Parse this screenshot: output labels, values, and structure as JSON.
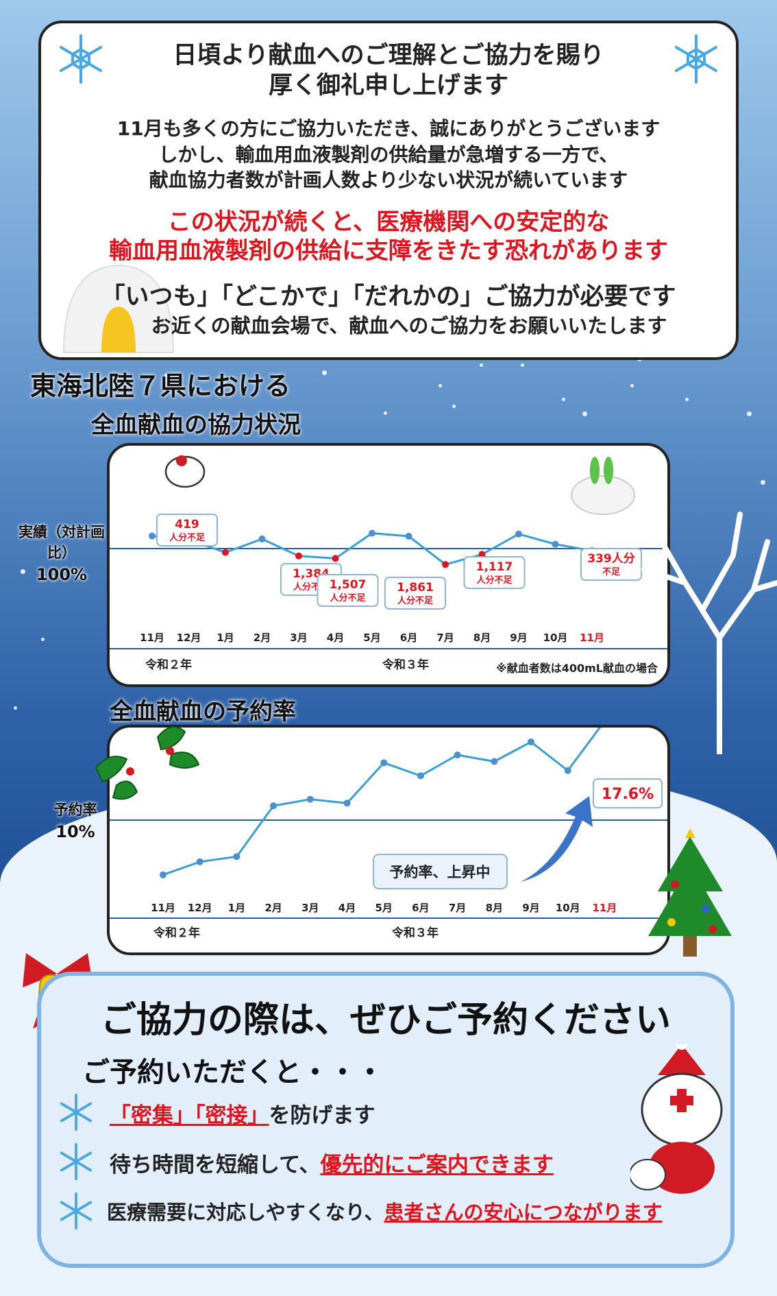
{
  "header": {
    "title_line1": "日頃より献血へのご理解とご協力を賜り",
    "title_line2": "厚く御礼申し上げます",
    "body_line1": "11月も多くの方にご協力いただき、誠にありがとうございます",
    "body_line2": "しかし、輸血用血液製剤の供給量が急増する一方で、",
    "body_line3": "献血協力者数が計画人数より少ない状況が続いています",
    "warning_line1": "この状況が続くと、医療機関への安定的な",
    "warning_line2": "輸血用血液製剤の供給に支障をきたす恐れがあります",
    "call_line1": "「いつも」「どこかで」「だれかの」ご協力が必要です",
    "call_line2": "お近くの献血会場で、献血へのご協力をお願いいたします"
  },
  "section": {
    "title_line1": "東海北陸７県における",
    "title_line2": "全血献血の協力状況",
    "chart2_title": "全血献血の予約率"
  },
  "chart_data": [
    {
      "type": "line",
      "title": "全血献血の協力状況",
      "ylabel": "実績（対計画比）",
      "reference_label": "100%",
      "reference_value": 100,
      "categories": [
        "11月",
        "12月",
        "1月",
        "2月",
        "3月",
        "4月",
        "5月",
        "6月",
        "7月",
        "8月",
        "9月",
        "10月",
        "11月"
      ],
      "values": [
        104.6,
        103.2,
        98.6,
        103.5,
        97.3,
        96.4,
        105.6,
        104.5,
        94.2,
        97.9,
        105.3,
        101.6,
        99.2
      ],
      "shortfall_points": [
        2,
        4,
        5,
        8,
        9,
        12
      ],
      "annotations": [
        {
          "point": 2,
          "value": "419",
          "unit": "人分不足"
        },
        {
          "point": 4,
          "value": "1,384",
          "unit": "人分不足"
        },
        {
          "point": 5,
          "value": "1,507",
          "unit": "人分不足"
        },
        {
          "point": 8,
          "value": "1,861",
          "unit": "人分不足"
        },
        {
          "point": 9,
          "value": "1,117",
          "unit": "人分不足"
        },
        {
          "point": 12,
          "value": "339人分",
          "unit": "不足"
        }
      ],
      "era_labels": [
        "令和２年",
        "令和３年"
      ],
      "footnote": "※献血者数は400mL献血の場合",
      "highlight_color": "#e0141e",
      "line_color": "#3a9fd3"
    },
    {
      "type": "line",
      "title": "全血献血の予約率",
      "ylabel": "予約率",
      "reference_label": "10%",
      "reference_value": 10,
      "categories": [
        "11月",
        "12月",
        "1月",
        "2月",
        "3月",
        "4月",
        "5月",
        "6月",
        "7月",
        "8月",
        "9月",
        "10月",
        "11月"
      ],
      "values": [
        5.8,
        6.8,
        7.2,
        11.1,
        11.6,
        11.3,
        14.4,
        13.4,
        15.0,
        14.5,
        16.0,
        13.8,
        17.6
      ],
      "last_value_label": "17.6%",
      "era_labels": [
        "令和２年",
        "令和３年"
      ],
      "annotation": "予約率、上昇中",
      "line_color": "#3a9fd3"
    }
  ],
  "bottom": {
    "title": "ご協力の際は、ぜひご予約ください",
    "subtitle": "ご予約いただくと・・・",
    "b1_red": "「密集」「密接」",
    "b1_rest": "を防げます",
    "b2_pre": "待ち時間を短縮して、",
    "b2_red": "優先的にご案内できます",
    "b3_pre": "医療需要に対応しやすくなり、",
    "b3_red": "患者さんの安心につながります"
  }
}
